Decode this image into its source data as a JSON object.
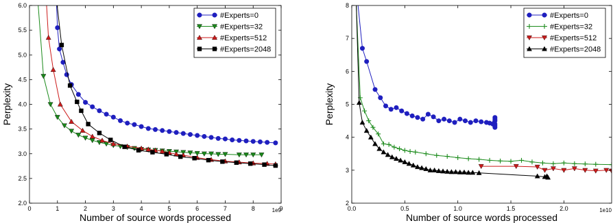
{
  "chart_data": [
    {
      "type": "line",
      "xlabel": "Number of source words processed",
      "ylabel": "Perplexity",
      "x_multiplier": "1e9",
      "xlim": [
        0,
        9
      ],
      "ylim": [
        2.0,
        6.0
      ],
      "xticks": [
        "0",
        "1",
        "2",
        "3",
        "4",
        "5",
        "6",
        "7",
        "8",
        "9"
      ],
      "yticks": [
        "2.0",
        "2.5",
        "3.0",
        "3.5",
        "4.0",
        "4.5",
        "5.0",
        "5.5",
        "6.0"
      ],
      "legend_position": "top-right",
      "grid": false,
      "series": [
        {
          "name": "#Experts=0",
          "color": "#1f1fbf",
          "marker": "circle",
          "points": [
            [
              0.95,
              6.3
            ],
            [
              1.0,
              5.55
            ],
            [
              1.07,
              5.12
            ],
            [
              1.2,
              4.85
            ],
            [
              1.33,
              4.6
            ],
            [
              1.5,
              4.4
            ],
            [
              1.75,
              4.2
            ],
            [
              2.0,
              4.04
            ],
            [
              2.25,
              3.95
            ],
            [
              2.5,
              3.87
            ],
            [
              2.75,
              3.8
            ],
            [
              3.0,
              3.74
            ],
            [
              3.25,
              3.67
            ],
            [
              3.5,
              3.62
            ],
            [
              3.75,
              3.59
            ],
            [
              4.0,
              3.55
            ],
            [
              4.25,
              3.51
            ],
            [
              4.5,
              3.49
            ],
            [
              4.75,
              3.47
            ],
            [
              5.0,
              3.45
            ],
            [
              5.25,
              3.43
            ],
            [
              5.5,
              3.41
            ],
            [
              5.75,
              3.39
            ],
            [
              6.0,
              3.37
            ],
            [
              6.25,
              3.35
            ],
            [
              6.5,
              3.33
            ],
            [
              6.75,
              3.31
            ],
            [
              7.0,
              3.3
            ],
            [
              7.25,
              3.28
            ],
            [
              7.5,
              3.27
            ],
            [
              7.75,
              3.26
            ],
            [
              8.0,
              3.25
            ],
            [
              8.25,
              3.24
            ],
            [
              8.5,
              3.23
            ],
            [
              8.8,
              3.22
            ]
          ]
        },
        {
          "name": "#Experts=32",
          "color": "#1a8a1a",
          "marker": "triangle-down",
          "points": [
            [
              0.3,
              6.1
            ],
            [
              0.5,
              4.57
            ],
            [
              0.75,
              4.0
            ],
            [
              1.0,
              3.74
            ],
            [
              1.25,
              3.57
            ],
            [
              1.5,
              3.46
            ],
            [
              1.75,
              3.38
            ],
            [
              2.0,
              3.32
            ],
            [
              2.25,
              3.27
            ],
            [
              2.5,
              3.23
            ],
            [
              2.75,
              3.2
            ],
            [
              3.0,
              3.17
            ],
            [
              3.25,
              3.15
            ],
            [
              3.5,
              3.13
            ],
            [
              3.75,
              3.11
            ],
            [
              4.0,
              3.09
            ],
            [
              4.25,
              3.08
            ],
            [
              4.5,
              3.07
            ],
            [
              4.75,
              3.06
            ],
            [
              5.0,
              3.05
            ],
            [
              5.25,
              3.04
            ],
            [
              5.5,
              3.03
            ],
            [
              5.75,
              3.02
            ],
            [
              6.0,
              3.01
            ],
            [
              6.25,
              3.0
            ],
            [
              6.5,
              3.0
            ],
            [
              6.75,
              2.99
            ],
            [
              7.0,
              2.99
            ],
            [
              7.5,
              2.98
            ],
            [
              7.75,
              2.98
            ],
            [
              8.0,
              2.98
            ],
            [
              8.3,
              2.98
            ]
          ]
        },
        {
          "name": "#Experts=512",
          "color": "#cc1a1a",
          "marker": "triangle-up",
          "points": [
            [
              0.6,
              6.1
            ],
            [
              0.68,
              5.35
            ],
            [
              0.85,
              4.7
            ],
            [
              1.1,
              4.0
            ],
            [
              1.5,
              3.65
            ],
            [
              1.9,
              3.47
            ],
            [
              2.25,
              3.35
            ],
            [
              2.6,
              3.27
            ],
            [
              3.0,
              3.2
            ],
            [
              3.5,
              3.15
            ],
            [
              4.0,
              3.11
            ],
            [
              4.25,
              3.09
            ],
            [
              4.5,
              3.07
            ],
            [
              4.75,
              3.05
            ],
            [
              5.0,
              3.02
            ],
            [
              5.25,
              2.99
            ],
            [
              5.5,
              2.97
            ],
            [
              6.0,
              2.92
            ],
            [
              6.5,
              2.88
            ],
            [
              7.0,
              2.85
            ],
            [
              7.5,
              2.83
            ],
            [
              8.0,
              2.81
            ],
            [
              8.5,
              2.8
            ],
            [
              8.8,
              2.79
            ]
          ]
        },
        {
          "name": "#Experts=2048",
          "color": "#000000",
          "marker": "square",
          "points": [
            [
              0.95,
              6.2
            ],
            [
              1.15,
              5.2
            ],
            [
              1.45,
              4.38
            ],
            [
              1.7,
              4.05
            ],
            [
              1.85,
              3.87
            ],
            [
              2.1,
              3.6
            ],
            [
              2.5,
              3.42
            ],
            [
              2.9,
              3.28
            ],
            [
              3.4,
              3.14
            ],
            [
              3.9,
              3.07
            ],
            [
              4.4,
              3.03
            ],
            [
              4.9,
              2.99
            ],
            [
              5.4,
              2.94
            ],
            [
              5.9,
              2.91
            ],
            [
              6.4,
              2.87
            ],
            [
              6.9,
              2.84
            ],
            [
              7.4,
              2.82
            ],
            [
              7.9,
              2.8
            ],
            [
              8.4,
              2.78
            ],
            [
              8.8,
              2.76
            ]
          ]
        }
      ]
    },
    {
      "type": "line",
      "xlabel": "Number of source words processed",
      "ylabel": "Perplexity",
      "x_multiplier": "1e10",
      "xlim": [
        0,
        2.45
      ],
      "ylim": [
        2,
        8
      ],
      "xticks": [
        "0.0",
        "0.5",
        "1.0",
        "1.5",
        "2.0"
      ],
      "yticks": [
        "2",
        "3",
        "4",
        "5",
        "6",
        "7",
        "8"
      ],
      "legend_position": "top-right",
      "grid": false,
      "series": [
        {
          "name": "#Experts=0",
          "color": "#1f1fbf",
          "marker": "circle",
          "points": [
            [
              0.05,
              8.3
            ],
            [
              0.1,
              6.7
            ],
            [
              0.14,
              6.3
            ],
            [
              0.22,
              5.45
            ],
            [
              0.27,
              5.2
            ],
            [
              0.32,
              4.95
            ],
            [
              0.37,
              4.85
            ],
            [
              0.42,
              4.9
            ],
            [
              0.47,
              4.8
            ],
            [
              0.52,
              4.72
            ],
            [
              0.57,
              4.65
            ],
            [
              0.62,
              4.6
            ],
            [
              0.67,
              4.55
            ],
            [
              0.72,
              4.7
            ],
            [
              0.77,
              4.62
            ],
            [
              0.82,
              4.5
            ],
            [
              0.87,
              4.55
            ],
            [
              0.92,
              4.5
            ],
            [
              0.97,
              4.45
            ],
            [
              1.02,
              4.55
            ],
            [
              1.07,
              4.5
            ],
            [
              1.12,
              4.45
            ],
            [
              1.17,
              4.5
            ],
            [
              1.22,
              4.47
            ],
            [
              1.27,
              4.45
            ],
            [
              1.3,
              4.43
            ],
            [
              1.33,
              4.4
            ],
            [
              1.345,
              4.45
            ],
            [
              1.35,
              4.4
            ],
            [
              1.35,
              4.6
            ],
            [
              1.35,
              4.55
            ],
            [
              1.35,
              4.5
            ],
            [
              1.35,
              4.35
            ],
            [
              1.35,
              4.3
            ]
          ]
        },
        {
          "name": "#Experts=32",
          "color": "#1a8a1a",
          "marker": "plus",
          "points": [
            [
              0.04,
              8.2
            ],
            [
              0.08,
              5.2
            ],
            [
              0.12,
              4.8
            ],
            [
              0.16,
              4.5
            ],
            [
              0.2,
              4.3
            ],
            [
              0.25,
              4.1
            ],
            [
              0.3,
              3.8
            ],
            [
              0.35,
              3.78
            ],
            [
              0.4,
              3.7
            ],
            [
              0.45,
              3.65
            ],
            [
              0.5,
              3.6
            ],
            [
              0.55,
              3.57
            ],
            [
              0.6,
              3.55
            ],
            [
              0.7,
              3.5
            ],
            [
              0.8,
              3.45
            ],
            [
              0.9,
              3.42
            ],
            [
              1.0,
              3.38
            ],
            [
              1.1,
              3.35
            ],
            [
              1.2,
              3.33
            ],
            [
              1.3,
              3.3
            ],
            [
              1.4,
              3.28
            ],
            [
              1.5,
              3.27
            ],
            [
              1.6,
              3.3
            ],
            [
              1.7,
              3.25
            ],
            [
              1.8,
              3.22
            ],
            [
              1.9,
              3.2
            ],
            [
              2.0,
              3.22
            ],
            [
              2.1,
              3.2
            ],
            [
              2.2,
              3.19
            ],
            [
              2.3,
              3.18
            ],
            [
              2.45,
              3.17
            ]
          ]
        },
        {
          "name": "#Experts=512",
          "color": "#cc1a1a",
          "marker": "triangle-down",
          "points": [
            [
              1.22,
              3.12
            ],
            [
              1.55,
              3.12
            ],
            [
              1.75,
              3.1
            ],
            [
              1.82,
              3.0
            ],
            [
              1.9,
              3.05
            ],
            [
              2.0,
              3.0
            ],
            [
              2.1,
              3.05
            ],
            [
              2.2,
              3.0
            ],
            [
              2.3,
              2.98
            ],
            [
              2.4,
              3.0
            ],
            [
              2.45,
              2.98
            ]
          ]
        },
        {
          "name": "#Experts=2048",
          "color": "#000000",
          "marker": "triangle-up",
          "points": [
            [
              0.04,
              8.3
            ],
            [
              0.07,
              5.05
            ],
            [
              0.1,
              4.45
            ],
            [
              0.14,
              4.2
            ],
            [
              0.18,
              4.0
            ],
            [
              0.22,
              3.8
            ],
            [
              0.26,
              3.65
            ],
            [
              0.3,
              3.55
            ],
            [
              0.34,
              3.47
            ],
            [
              0.38,
              3.4
            ],
            [
              0.42,
              3.35
            ],
            [
              0.46,
              3.3
            ],
            [
              0.5,
              3.25
            ],
            [
              0.54,
              3.2
            ],
            [
              0.58,
              3.15
            ],
            [
              0.62,
              3.1
            ],
            [
              0.66,
              3.07
            ],
            [
              0.7,
              3.04
            ],
            [
              0.74,
              3.0
            ],
            [
              0.78,
              3.0
            ],
            [
              0.82,
              2.98
            ],
            [
              0.86,
              2.97
            ],
            [
              0.9,
              2.96
            ],
            [
              0.94,
              2.95
            ],
            [
              0.98,
              2.95
            ],
            [
              1.02,
              2.94
            ],
            [
              1.06,
              2.94
            ],
            [
              1.1,
              2.93
            ],
            [
              1.14,
              2.93
            ],
            [
              1.2,
              2.92
            ],
            [
              1.75,
              2.82
            ],
            [
              1.82,
              2.8
            ],
            [
              1.84,
              2.82
            ],
            [
              1.85,
              2.78
            ]
          ]
        }
      ]
    }
  ]
}
